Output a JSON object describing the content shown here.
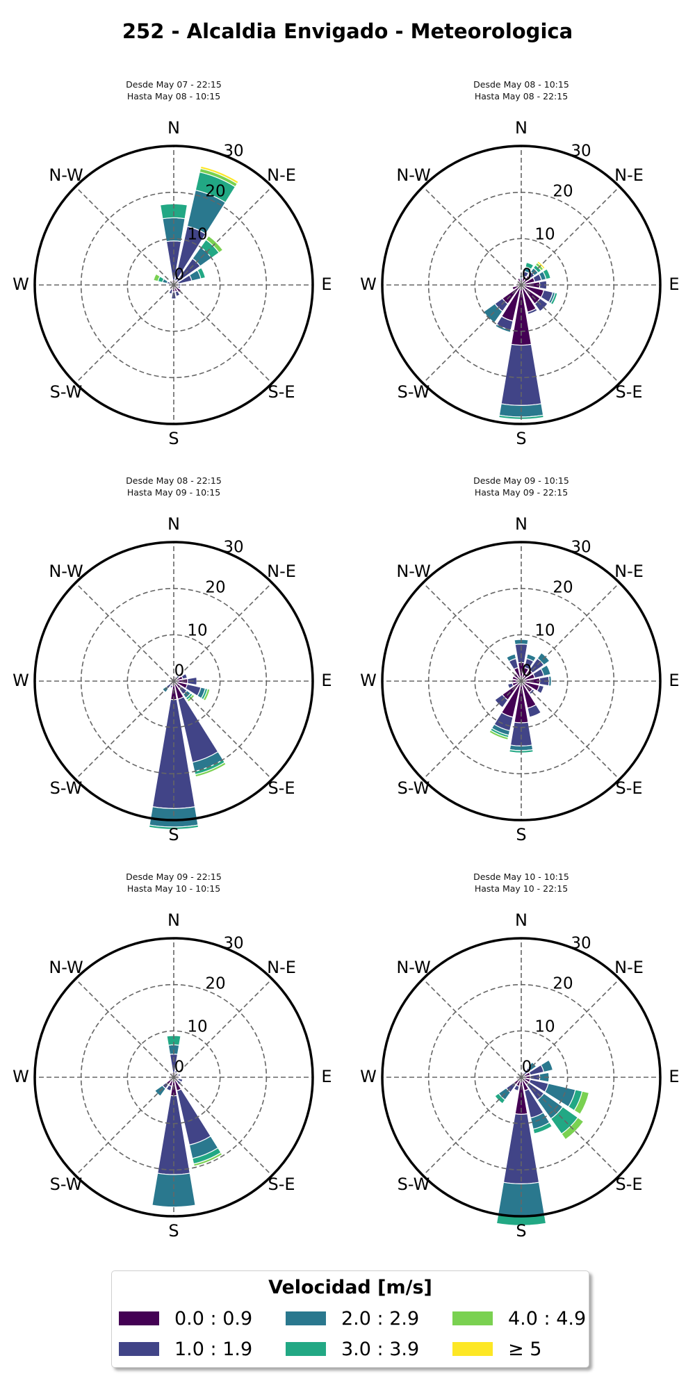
{
  "title": "252 - Alcaldia Envigado - Meteorologica",
  "legend": {
    "title": "Velocidad [m/s]",
    "bins": [
      {
        "label": "0.0 : 0.9",
        "color": "#440154"
      },
      {
        "label": "1.0 : 1.9",
        "color": "#414487"
      },
      {
        "label": "2.0 : 2.9",
        "color": "#2a788e"
      },
      {
        "label": "3.0 : 3.9",
        "color": "#22a884"
      },
      {
        "label": "4.0 : 4.9",
        "color": "#7ad151"
      },
      {
        "label": "≥  5",
        "color": "#fde725"
      }
    ]
  },
  "axis": {
    "directions": [
      "N",
      "N-E",
      "E",
      "S-E",
      "S",
      "S-W",
      "W",
      "N-W"
    ],
    "ring_labels": [
      "0",
      "10",
      "20",
      "30"
    ],
    "rmax": 30,
    "grid": true
  },
  "chart_data": [
    {
      "type": "windrose",
      "subtitle_line1": "Desde May 07 - 22:15",
      "subtitle_line2": "Hasta May 08 - 10:15",
      "sectors": [
        {
          "dir": 0,
          "values": [
            1,
            8.5,
            5,
            3,
            0,
            0
          ]
        },
        {
          "dir": 22.5,
          "values": [
            1,
            12,
            8,
            4,
            0.8,
            0.5
          ]
        },
        {
          "dir": 45,
          "values": [
            1,
            6,
            3,
            2,
            1,
            0
          ]
        },
        {
          "dir": 67.5,
          "values": [
            1,
            3,
            2,
            1,
            0,
            0
          ]
        },
        {
          "dir": 90,
          "values": [
            1,
            0.5,
            0,
            0,
            0,
            0
          ]
        },
        {
          "dir": 112.5,
          "values": [
            1,
            0.5,
            0,
            0,
            0,
            0
          ]
        },
        {
          "dir": 135,
          "values": [
            2,
            0,
            0,
            0,
            0,
            0
          ]
        },
        {
          "dir": 157.5,
          "values": [
            1.5,
            1,
            0,
            0,
            0,
            0
          ]
        },
        {
          "dir": 180,
          "values": [
            1.5,
            1.5,
            0,
            0,
            0,
            0
          ]
        },
        {
          "dir": 202.5,
          "values": [
            1,
            1,
            0,
            0,
            0,
            0
          ]
        },
        {
          "dir": 225,
          "values": [
            0.5,
            0,
            0,
            0,
            0,
            0
          ]
        },
        {
          "dir": 247.5,
          "values": [
            0.5,
            0,
            0,
            0,
            0,
            0
          ]
        },
        {
          "dir": 270,
          "values": [
            0.5,
            0,
            0,
            0,
            0,
            0
          ]
        },
        {
          "dir": 292.5,
          "values": [
            0.5,
            1,
            1,
            1,
            1,
            0
          ]
        },
        {
          "dir": 315,
          "values": [
            0.5,
            0.5,
            0,
            0,
            0,
            0
          ]
        },
        {
          "dir": 337.5,
          "values": [
            1,
            0,
            0,
            0,
            0,
            0
          ]
        }
      ]
    },
    {
      "type": "windrose",
      "subtitle_line1": "Desde May 08 - 10:15",
      "subtitle_line2": "Hasta May 08 - 22:15",
      "sectors": [
        {
          "dir": 0,
          "values": [
            1,
            0.5,
            0.5,
            0,
            0,
            0
          ]
        },
        {
          "dir": 22.5,
          "values": [
            2,
            1,
            1,
            1,
            0,
            0
          ]
        },
        {
          "dir": 45,
          "values": [
            2.5,
            1,
            1,
            0.8,
            0.6,
            0.4
          ]
        },
        {
          "dir": 67.5,
          "values": [
            3,
            1.5,
            1,
            1,
            0,
            0
          ]
        },
        {
          "dir": 90,
          "values": [
            4,
            1.5,
            0,
            0,
            0,
            0
          ]
        },
        {
          "dir": 112.5,
          "values": [
            5,
            2,
            0.5,
            0.5,
            0,
            0
          ]
        },
        {
          "dir": 135,
          "values": [
            5,
            2,
            0,
            0,
            0,
            0
          ]
        },
        {
          "dir": 157.5,
          "values": [
            6,
            0.5,
            0,
            0,
            0,
            0
          ]
        },
        {
          "dir": 180,
          "values": [
            13,
            13,
            2.5,
            0.5,
            0,
            0
          ]
        },
        {
          "dir": 202.5,
          "values": [
            8,
            2,
            0.5,
            0,
            0,
            0
          ]
        },
        {
          "dir": 225,
          "values": [
            5,
            2,
            3,
            0,
            0,
            0
          ]
        },
        {
          "dir": 247.5,
          "values": [
            2,
            0,
            0,
            0,
            0,
            0
          ]
        },
        {
          "dir": 270,
          "values": [
            1,
            0,
            0,
            0,
            0,
            0
          ]
        },
        {
          "dir": 292.5,
          "values": [
            1,
            0,
            0,
            0,
            0,
            0
          ]
        },
        {
          "dir": 315,
          "values": [
            1,
            0,
            0,
            0,
            0,
            0
          ]
        },
        {
          "dir": 337.5,
          "values": [
            1.5,
            0,
            0,
            0,
            0,
            0
          ]
        }
      ]
    },
    {
      "type": "windrose",
      "subtitle_line1": "Desde May 08 - 22:15",
      "subtitle_line2": "Hasta May 09 - 10:15",
      "sectors": [
        {
          "dir": 0,
          "values": [
            0.5,
            0,
            0,
            0,
            0,
            0
          ]
        },
        {
          "dir": 22.5,
          "values": [
            1,
            0,
            0,
            0,
            0,
            0
          ]
        },
        {
          "dir": 45,
          "values": [
            1,
            0.5,
            0,
            0,
            0,
            0
          ]
        },
        {
          "dir": 67.5,
          "values": [
            2,
            1,
            0,
            0,
            0,
            0
          ]
        },
        {
          "dir": 90,
          "values": [
            3,
            2,
            0,
            0,
            0,
            0
          ]
        },
        {
          "dir": 112.5,
          "values": [
            3,
            3,
            1,
            0.5,
            0.5,
            0
          ]
        },
        {
          "dir": 135,
          "values": [
            2,
            1.5,
            1,
            0.5,
            0.5,
            0
          ]
        },
        {
          "dir": 157.5,
          "values": [
            4,
            14,
            2,
            0.7,
            0.5,
            0
          ]
        },
        {
          "dir": 180,
          "values": [
            4,
            23.5,
            4,
            0.5,
            0,
            0
          ]
        },
        {
          "dir": 202.5,
          "values": [
            1,
            0.5,
            0,
            0,
            0,
            0
          ]
        },
        {
          "dir": 225,
          "values": [
            1,
            1,
            1,
            0,
            0,
            0
          ]
        },
        {
          "dir": 247.5,
          "values": [
            0.5,
            0,
            0,
            0,
            0,
            0
          ]
        },
        {
          "dir": 270,
          "values": [
            0.5,
            0,
            0,
            0,
            0,
            0
          ]
        },
        {
          "dir": 292.5,
          "values": [
            0.5,
            0,
            0,
            0,
            0,
            0
          ]
        },
        {
          "dir": 315,
          "values": [
            0.5,
            0,
            0,
            0,
            0,
            0
          ]
        },
        {
          "dir": 337.5,
          "values": [
            0.5,
            0,
            0,
            0,
            0,
            0
          ]
        }
      ]
    },
    {
      "type": "windrose",
      "subtitle_line1": "Desde May 09 - 10:15",
      "subtitle_line2": "Hasta May 09 - 22:15",
      "sectors": [
        {
          "dir": 0,
          "values": [
            4,
            4,
            1,
            0,
            0,
            0
          ]
        },
        {
          "dir": 22.5,
          "values": [
            3,
            2,
            1,
            0,
            0,
            0
          ]
        },
        {
          "dir": 45,
          "values": [
            3,
            3,
            1.5,
            0,
            0,
            0
          ]
        },
        {
          "dir": 67.5,
          "values": [
            3,
            2,
            1.5,
            0,
            0,
            0
          ]
        },
        {
          "dir": 90,
          "values": [
            4,
            2,
            0.5,
            0,
            0,
            0
          ]
        },
        {
          "dir": 112.5,
          "values": [
            4,
            1,
            0,
            0,
            0,
            0
          ]
        },
        {
          "dir": 135,
          "values": [
            3,
            0.5,
            0,
            0,
            0,
            0
          ]
        },
        {
          "dir": 157.5,
          "values": [
            6,
            2,
            0,
            0,
            0,
            0
          ]
        },
        {
          "dir": 180,
          "values": [
            9,
            5,
            1,
            0.5,
            0,
            0
          ]
        },
        {
          "dir": 202.5,
          "values": [
            8,
            3,
            1,
            0.5,
            0.5,
            0
          ]
        },
        {
          "dir": 225,
          "values": [
            5,
            2,
            0,
            0,
            0,
            0
          ]
        },
        {
          "dir": 247.5,
          "values": [
            2,
            1,
            0,
            0,
            0,
            0
          ]
        },
        {
          "dir": 270,
          "values": [
            2,
            0,
            0,
            0,
            0,
            0
          ]
        },
        {
          "dir": 292.5,
          "values": [
            2,
            0,
            0,
            0,
            0,
            0
          ]
        },
        {
          "dir": 315,
          "values": [
            2,
            0,
            0,
            0,
            0,
            0
          ]
        },
        {
          "dir": 337.5,
          "values": [
            3,
            2,
            1,
            0,
            0,
            0
          ]
        }
      ]
    },
    {
      "type": "windrose",
      "subtitle_line1": "Desde May 09 - 22:15",
      "subtitle_line2": "Hasta May 10 - 10:15",
      "sectors": [
        {
          "dir": 0,
          "values": [
            1,
            4,
            2,
            2,
            0,
            0
          ]
        },
        {
          "dir": 22.5,
          "values": [
            1,
            0.5,
            0,
            0,
            0,
            0
          ]
        },
        {
          "dir": 45,
          "values": [
            1,
            0,
            0,
            0,
            0,
            0
          ]
        },
        {
          "dir": 67.5,
          "values": [
            1,
            0.5,
            0,
            0,
            0,
            0
          ]
        },
        {
          "dir": 90,
          "values": [
            1,
            0,
            0,
            0,
            0,
            0
          ]
        },
        {
          "dir": 112.5,
          "values": [
            1,
            1,
            0,
            0,
            0,
            0
          ]
        },
        {
          "dir": 135,
          "values": [
            1,
            1,
            0,
            0,
            0,
            0
          ]
        },
        {
          "dir": 157.5,
          "values": [
            3,
            12,
            3,
            1.2,
            0.5,
            0
          ]
        },
        {
          "dir": 180,
          "values": [
            4,
            17,
            7,
            0,
            0,
            0
          ]
        },
        {
          "dir": 202.5,
          "values": [
            2,
            1,
            0,
            0,
            0,
            0
          ]
        },
        {
          "dir": 225,
          "values": [
            2,
            1,
            2,
            0,
            0,
            0
          ]
        },
        {
          "dir": 247.5,
          "values": [
            1,
            0,
            0,
            0,
            0,
            0
          ]
        },
        {
          "dir": 270,
          "values": [
            0.5,
            0,
            0,
            0,
            0,
            0
          ]
        },
        {
          "dir": 292.5,
          "values": [
            0.5,
            0,
            0,
            0,
            0,
            0
          ]
        },
        {
          "dir": 315,
          "values": [
            0.5,
            0,
            0,
            0,
            0,
            0
          ]
        },
        {
          "dir": 337.5,
          "values": [
            1,
            0,
            0,
            0,
            0,
            0
          ]
        }
      ]
    },
    {
      "type": "windrose",
      "subtitle_line1": "Desde May 10 - 10:15",
      "subtitle_line2": "Hasta May 10 - 22:15",
      "sectors": [
        {
          "dir": 0,
          "values": [
            0.5,
            0,
            0,
            0,
            0,
            0
          ]
        },
        {
          "dir": 22.5,
          "values": [
            1,
            0,
            0,
            0,
            0,
            0
          ]
        },
        {
          "dir": 45,
          "values": [
            1,
            1.5,
            1.5,
            0,
            0,
            0
          ]
        },
        {
          "dir": 67.5,
          "values": [
            2,
            3,
            2,
            0,
            0,
            0
          ]
        },
        {
          "dir": 90,
          "values": [
            2,
            2,
            2,
            0,
            0,
            0
          ]
        },
        {
          "dir": 112.5,
          "values": [
            2,
            4,
            6,
            1.5,
            1.5,
            0
          ]
        },
        {
          "dir": 135,
          "values": [
            2,
            4,
            5,
            4,
            1.5,
            0
          ]
        },
        {
          "dir": 157.5,
          "values": [
            3,
            6,
            2.5,
            1,
            0,
            0
          ]
        },
        {
          "dir": 180,
          "values": [
            8,
            15,
            7,
            2,
            0,
            0
          ]
        },
        {
          "dir": 202.5,
          "values": [
            2,
            1,
            0,
            0,
            0,
            0
          ]
        },
        {
          "dir": 225,
          "values": [
            2,
            2,
            2,
            1,
            0,
            0
          ]
        },
        {
          "dir": 247.5,
          "values": [
            1,
            0,
            0,
            0,
            0,
            0
          ]
        },
        {
          "dir": 270,
          "values": [
            0.5,
            0,
            0,
            0,
            0,
            0
          ]
        },
        {
          "dir": 292.5,
          "values": [
            0.5,
            0,
            0,
            0,
            0,
            0
          ]
        },
        {
          "dir": 315,
          "values": [
            0.5,
            0,
            0,
            0,
            0,
            0
          ]
        },
        {
          "dir": 337.5,
          "values": [
            0.5,
            0,
            0,
            0,
            0,
            0
          ]
        }
      ]
    }
  ]
}
